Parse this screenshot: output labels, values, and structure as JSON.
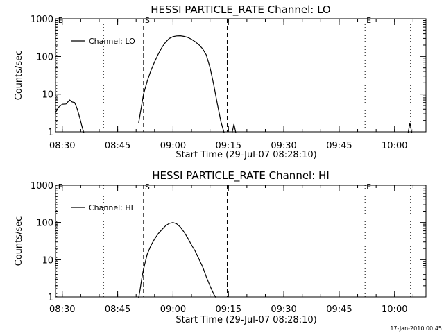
{
  "footer_timestamp": "17-Jan-2010 00:45",
  "chart_data": [
    {
      "type": "line",
      "title": "HESSI PARTICLE_RATE Channel: LO",
      "xlabel": "Start Time (29-Jul-07 08:28:10)",
      "ylabel": "Counts/sec",
      "yscale": "log",
      "ylim": [
        1,
        1000
      ],
      "xlim": [
        "08:28:10",
        "10:08:30"
      ],
      "x_ticks": [
        "08:30",
        "08:45",
        "09:00",
        "09:15",
        "09:30",
        "09:45",
        "10:00"
      ],
      "y_ticks": [
        "1",
        "10",
        "100",
        "1000"
      ],
      "legend": {
        "position": "top-left",
        "entries": [
          "Channel: LO"
        ]
      },
      "markers": [
        {
          "label": "E",
          "time": "08:28:30",
          "style": "dotted"
        },
        {
          "label": "",
          "time": "08:41:10",
          "style": "dotted"
        },
        {
          "label": "S",
          "time": "08:52:00",
          "style": "dashed"
        },
        {
          "label": "",
          "time": "09:14:40",
          "style": "dashed"
        },
        {
          "label": "E",
          "time": "09:52:00",
          "style": "dotted"
        },
        {
          "label": "",
          "time": "10:04:20",
          "style": "dotted"
        }
      ],
      "series": [
        {
          "name": "Channel: LO",
          "segments": [
            {
              "x": [
                "08:28:10",
                "08:29:00",
                "08:30:00",
                "08:31:00",
                "08:32:00",
                "08:32:40",
                "08:33:20",
                "08:34:00",
                "08:34:40",
                "08:35:20",
                "08:35:50"
              ],
              "y": [
                3.2,
                4.5,
                5.4,
                5.5,
                7.0,
                6.2,
                6.0,
                4.2,
                2.5,
                1.4,
                0.95
              ]
            },
            {
              "x": [
                "08:50:40",
                "08:52:00",
                "08:53:00",
                "08:54:00",
                "08:55:00",
                "08:56:00",
                "08:57:00",
                "08:58:00",
                "08:59:00",
                "09:00:00",
                "09:01:00",
                "09:02:00",
                "09:03:00",
                "09:04:00",
                "09:05:00",
                "09:06:00",
                "09:07:00",
                "09:08:00",
                "09:09:00",
                "09:10:00",
                "09:11:00",
                "09:12:00",
                "09:13:00",
                "09:13:50"
              ],
              "y": [
                1.7,
                9.8,
                22,
                42,
                72,
                115,
                175,
                240,
                300,
                335,
                350,
                352,
                340,
                318,
                285,
                245,
                205,
                160,
                110,
                52,
                18,
                5.5,
                1.8,
                0.95
              ]
            },
            {
              "x": [
                "09:16:00",
                "09:16:30",
                "09:17:00"
              ],
              "y": [
                0.95,
                1.6,
                0.95
              ]
            },
            {
              "x": [
                "10:03:40",
                "10:04:10",
                "10:04:40"
              ],
              "y": [
                0.95,
                1.7,
                0.95
              ]
            }
          ]
        }
      ]
    },
    {
      "type": "line",
      "title": "HESSI PARTICLE_RATE Channel: HI",
      "xlabel": "Start Time (29-Jul-07 08:28:10)",
      "ylabel": "Counts/sec",
      "yscale": "log",
      "ylim": [
        1,
        1000
      ],
      "xlim": [
        "08:28:10",
        "10:08:30"
      ],
      "x_ticks": [
        "08:30",
        "08:45",
        "09:00",
        "09:15",
        "09:30",
        "09:45",
        "10:00"
      ],
      "y_ticks": [
        "1",
        "10",
        "100",
        "1000"
      ],
      "legend": {
        "position": "top-left",
        "entries": [
          "Channel: HI"
        ]
      },
      "markers": [
        {
          "label": "E",
          "time": "08:28:30",
          "style": "dotted"
        },
        {
          "label": "",
          "time": "08:41:10",
          "style": "dotted"
        },
        {
          "label": "S",
          "time": "08:52:00",
          "style": "dashed"
        },
        {
          "label": "",
          "time": "09:14:40",
          "style": "dashed"
        },
        {
          "label": "E",
          "time": "09:52:00",
          "style": "dotted"
        },
        {
          "label": "",
          "time": "10:04:20",
          "style": "dotted"
        }
      ],
      "series": [
        {
          "name": "Channel: HI",
          "segments": [
            {
              "x": [
                "08:50:40",
                "08:51:00",
                "08:51:30",
                "08:52:00",
                "08:53:00",
                "08:54:00",
                "08:55:00",
                "08:56:00",
                "08:57:00",
                "08:58:00",
                "08:59:00",
                "09:00:00",
                "09:01:00",
                "09:02:00",
                "09:03:00",
                "09:04:00",
                "09:05:00",
                "09:06:00",
                "09:07:00",
                "09:08:00",
                "09:09:00",
                "09:10:00",
                "09:11:00",
                "09:11:40"
              ],
              "y": [
                0.95,
                1.4,
                3.0,
                5.5,
                14,
                24,
                36,
                50,
                65,
                82,
                95,
                100,
                92,
                75,
                55,
                38,
                25,
                17,
                10.5,
                6.5,
                3.5,
                2.0,
                1.2,
                0.95
              ]
            }
          ]
        }
      ]
    }
  ]
}
